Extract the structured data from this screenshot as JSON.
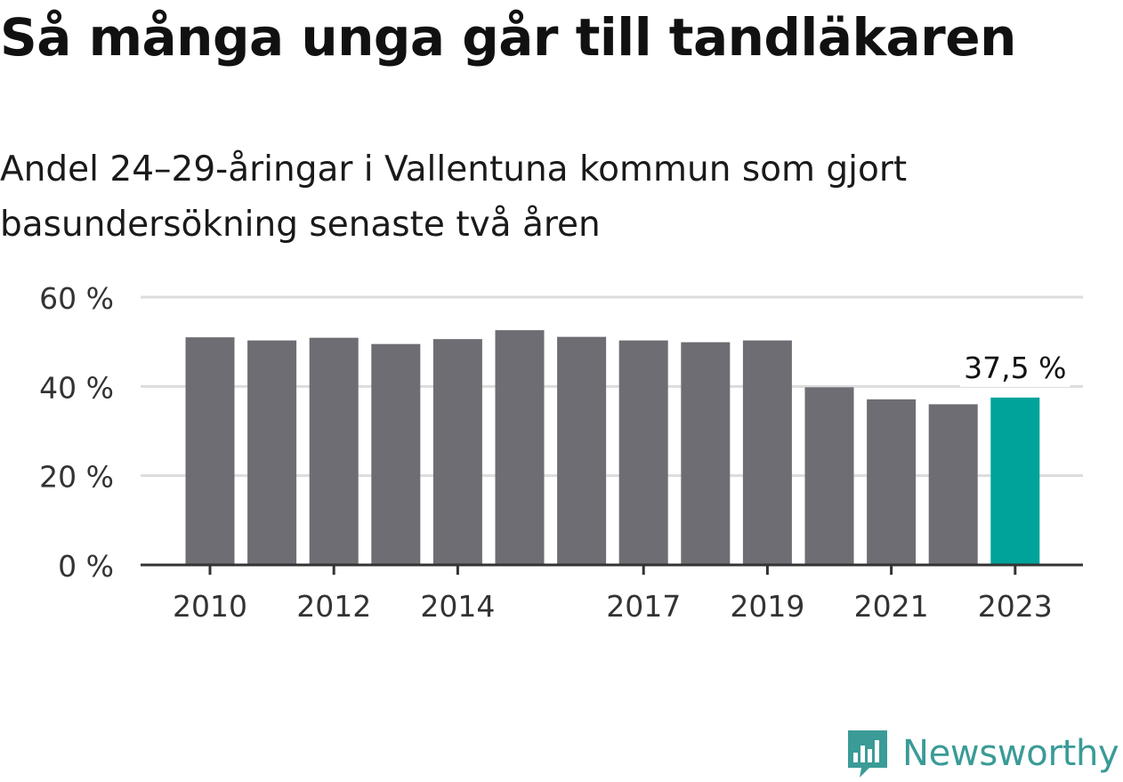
{
  "header": {
    "title": "Så många unga går till tandläkaren",
    "subtitle": "Andel 24–29-åringar i Vallentuna kommun som gjort basundersökning senaste två åren"
  },
  "brand": {
    "name": "Newsworthy",
    "icon": "bar-chart-speech-icon",
    "color": "#3a9b97"
  },
  "chart_data": {
    "type": "bar",
    "categories": [
      "2010",
      "2011",
      "2012",
      "2013",
      "2014",
      "2015",
      "2016",
      "2017",
      "2018",
      "2019",
      "2020",
      "2021",
      "2022",
      "2023"
    ],
    "values": [
      51.0,
      50.3,
      50.9,
      49.5,
      50.6,
      52.6,
      51.1,
      50.3,
      49.9,
      50.3,
      39.8,
      37.1,
      36.0,
      37.5
    ],
    "x_tick_labels": [
      "2010",
      "",
      "2012",
      "",
      "2014",
      "",
      "",
      "2017",
      "",
      "2019",
      "",
      "2021",
      "",
      "2023"
    ],
    "y_ticks": [
      0,
      20,
      40,
      60
    ],
    "y_tick_labels": [
      "0 %",
      "20 %",
      "40 %",
      "60 %"
    ],
    "ylim": [
      0,
      60
    ],
    "xlabel": "",
    "ylabel": "",
    "grid": true,
    "highlight_index": 13,
    "highlight_label": "37,5 %",
    "colors": {
      "bar": "#6d6d73",
      "highlight": "#00a39a",
      "grid": "#dcdcdc",
      "axis": "#333333"
    }
  }
}
